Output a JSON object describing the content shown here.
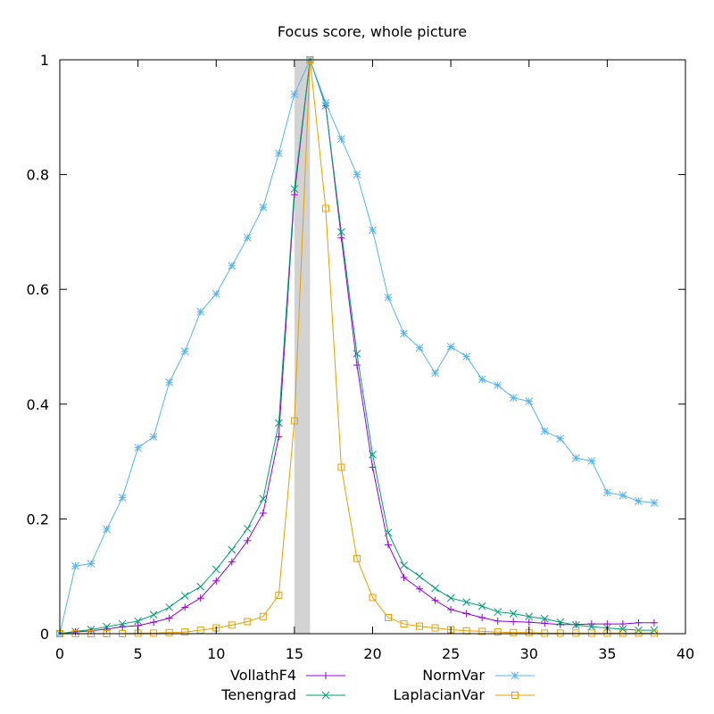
{
  "chart_data": {
    "type": "line",
    "title": "Focus score, whole picture",
    "xlabel": "",
    "ylabel": "",
    "xlim": [
      0,
      40
    ],
    "ylim": [
      0,
      1
    ],
    "x_ticks": [
      0,
      5,
      10,
      15,
      20,
      25,
      30,
      35,
      40
    ],
    "y_ticks": [
      0,
      0.2,
      0.4,
      0.6,
      0.8,
      1
    ],
    "x_tick_labels": [
      "0",
      "5",
      "10",
      "15",
      "20",
      "25",
      "30",
      "35",
      "40"
    ],
    "y_tick_labels": [
      "0",
      "0.2",
      "0.4",
      "0.6",
      "0.8",
      "1"
    ],
    "grid": false,
    "legend_position": "bottom",
    "highlight_band": {
      "x_start": 15,
      "x_end": 16,
      "color": "#d3d3d3"
    },
    "x": [
      0,
      1,
      2,
      3,
      4,
      5,
      6,
      7,
      8,
      9,
      10,
      11,
      12,
      13,
      14,
      15,
      16,
      17,
      18,
      19,
      20,
      21,
      22,
      23,
      24,
      25,
      26,
      27,
      28,
      29,
      30,
      31,
      32,
      33,
      34,
      35,
      36,
      37,
      38
    ],
    "series": [
      {
        "name": "VollathF4",
        "color": "#9400d3",
        "marker": "plus",
        "values": [
          0.0,
          0.003,
          0.005,
          0.008,
          0.012,
          0.014,
          0.02,
          0.027,
          0.046,
          0.062,
          0.092,
          0.125,
          0.162,
          0.21,
          0.343,
          0.765,
          1.0,
          0.92,
          0.69,
          0.468,
          0.29,
          0.155,
          0.098,
          0.078,
          0.058,
          0.042,
          0.035,
          0.028,
          0.022,
          0.021,
          0.02,
          0.018,
          0.016,
          0.016,
          0.017,
          0.017,
          0.017,
          0.019,
          0.019
        ]
      },
      {
        "name": "Tenengrad",
        "color": "#009e73",
        "marker": "cross",
        "values": [
          0.0,
          0.004,
          0.007,
          0.012,
          0.017,
          0.022,
          0.033,
          0.046,
          0.066,
          0.082,
          0.112,
          0.146,
          0.183,
          0.235,
          0.367,
          0.775,
          1.0,
          0.92,
          0.7,
          0.488,
          0.312,
          0.176,
          0.119,
          0.1,
          0.079,
          0.062,
          0.055,
          0.048,
          0.038,
          0.035,
          0.03,
          0.026,
          0.02,
          0.015,
          0.012,
          0.01,
          0.008,
          0.006,
          0.006
        ]
      },
      {
        "name": "NormVar",
        "color": "#56b4e9",
        "marker": "star",
        "values": [
          0.0,
          0.118,
          0.122,
          0.182,
          0.237,
          0.324,
          0.343,
          0.438,
          0.492,
          0.561,
          0.592,
          0.641,
          0.69,
          0.743,
          0.837,
          0.94,
          1.0,
          0.925,
          0.862,
          0.8,
          0.703,
          0.586,
          0.523,
          0.498,
          0.454,
          0.5,
          0.483,
          0.443,
          0.433,
          0.411,
          0.405,
          0.353,
          0.34,
          0.306,
          0.301,
          0.246,
          0.241,
          0.231,
          0.228
        ]
      },
      {
        "name": "LaplacianVar",
        "color": "#e69f00",
        "marker": "square",
        "values": [
          0.0,
          0.0,
          0.0,
          0.0,
          0.0,
          0.001,
          0.001,
          0.002,
          0.003,
          0.006,
          0.01,
          0.015,
          0.021,
          0.03,
          0.067,
          0.371,
          1.0,
          0.741,
          0.29,
          0.131,
          0.063,
          0.028,
          0.017,
          0.013,
          0.01,
          0.007,
          0.005,
          0.004,
          0.003,
          0.002,
          0.002,
          0.001,
          0.001,
          0.001,
          0.001,
          0.001,
          0.001,
          0.001,
          0.001
        ]
      }
    ]
  }
}
